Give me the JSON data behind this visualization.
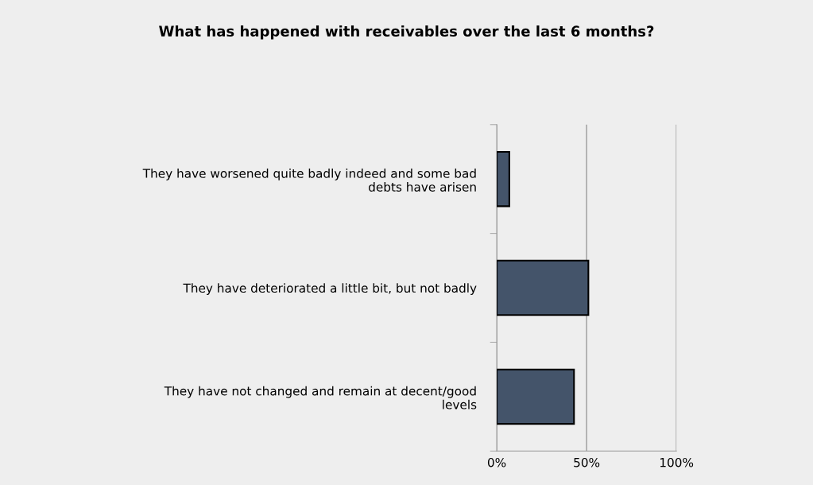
{
  "chart_data": {
    "type": "bar",
    "orientation": "horizontal",
    "title": "What has happened with receivables over the last 6 months?",
    "categories": [
      "They have worsened quite badly indeed and some bad\ndebts have arisen",
      "They have deteriorated a little bit, but not badly",
      "They have not changed and remain at decent/good\nlevels"
    ],
    "values": [
      7,
      51,
      43
    ],
    "color": "#44546a",
    "xlim": [
      0,
      100
    ],
    "xticks": [
      {
        "value": 0,
        "label": "0%"
      },
      {
        "value": 50,
        "label": "50%"
      },
      {
        "value": 100,
        "label": "100%"
      }
    ],
    "grid": "x",
    "legend": false
  }
}
